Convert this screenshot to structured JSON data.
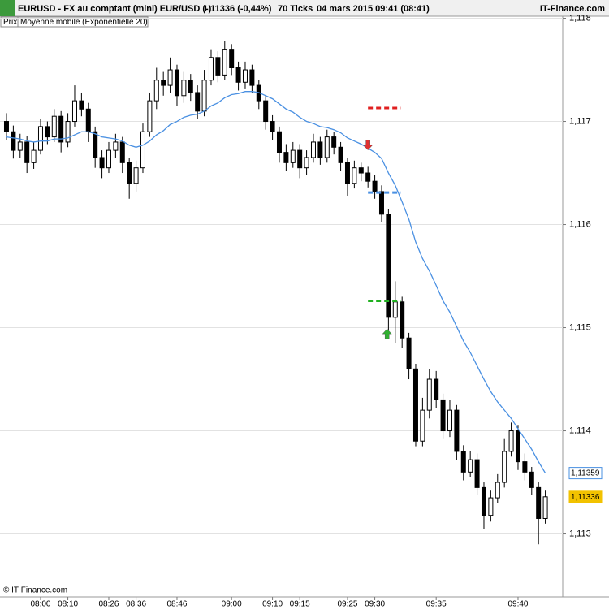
{
  "chart_data": {
    "type": "candlestick",
    "title": "EURUSD - FX au comptant (mini) EUR/USD (-)",
    "last_quote": "1,11336 (-0,44%)",
    "interval": "70 Ticks",
    "date": "04 mars 2015 09:41 (08:41)",
    "source": "IT-Finance.com",
    "footer": "© IT-Finance.com",
    "price_label": "Prix",
    "x": [
      0,
      1,
      2,
      3,
      4,
      5,
      6,
      7,
      8,
      9,
      10,
      11,
      12,
      13,
      14,
      15,
      16,
      17,
      18,
      19,
      20,
      21,
      22,
      23,
      24,
      25,
      26,
      27,
      28,
      29,
      30,
      31,
      32,
      33,
      34,
      35,
      36,
      37,
      38,
      39,
      40,
      41,
      42,
      43,
      44,
      45,
      46,
      47,
      48,
      49,
      50,
      51,
      52,
      53,
      54,
      55,
      56,
      57,
      58,
      59,
      60,
      61,
      62,
      63,
      64,
      65,
      66,
      67,
      68,
      69,
      70,
      71,
      72,
      73,
      74,
      75,
      76,
      77,
      78,
      79
    ],
    "open": [
      1.117,
      1.1169,
      1.11672,
      1.1168,
      1.1166,
      1.11672,
      1.11695,
      1.11685,
      1.11705,
      1.1168,
      1.117,
      1.1172,
      1.11712,
      1.1169,
      1.11665,
      1.11655,
      1.11672,
      1.1168,
      1.1166,
      1.1164,
      1.11655,
      1.1169,
      1.1172,
      1.1174,
      1.11735,
      1.1175,
      1.11725,
      1.1174,
      1.11728,
      1.1171,
      1.1174,
      1.11762,
      1.11745,
      1.1177,
      1.11752,
      1.11738,
      1.1175,
      1.11735,
      1.1172,
      1.117,
      1.1169,
      1.1167,
      1.1166,
      1.11672,
      1.11655,
      1.11665,
      1.1168,
      1.11665,
      1.11685,
      1.11675,
      1.1166,
      1.1164,
      1.11655,
      1.1165,
      1.11642,
      1.11632,
      1.1161,
      1.1151,
      1.11525,
      1.1149,
      1.1146,
      1.1139,
      1.1142,
      1.1145,
      1.1143,
      1.114,
      1.1142,
      1.1138,
      1.1136,
      1.11372,
      1.11345,
      1.11318,
      1.11335,
      1.1135,
      1.1138,
      1.114,
      1.1137,
      1.1136,
      1.11345,
      1.11315
    ],
    "high": [
      1.11708,
      1.11696,
      1.11688,
      1.11686,
      1.1168,
      1.11702,
      1.117,
      1.11712,
      1.1171,
      1.11708,
      1.11735,
      1.11728,
      1.11718,
      1.11695,
      1.11672,
      1.1168,
      1.11688,
      1.11685,
      1.11665,
      1.11662,
      1.11698,
      1.11728,
      1.11752,
      1.11748,
      1.11762,
      1.11755,
      1.11748,
      1.11746,
      1.11735,
      1.1175,
      1.1177,
      1.11768,
      1.11778,
      1.11775,
      1.11758,
      1.11758,
      1.11755,
      1.1174,
      1.11725,
      1.11706,
      1.11695,
      1.11678,
      1.1168,
      1.11678,
      1.11672,
      1.11688,
      1.11685,
      1.11692,
      1.1169,
      1.1168,
      1.11665,
      1.11662,
      1.1166,
      1.11656,
      1.11648,
      1.11638,
      1.11615,
      1.11545,
      1.1153,
      1.11495,
      1.11465,
      1.11432,
      1.1146,
      1.11458,
      1.11436,
      1.1143,
      1.11425,
      1.11386,
      1.1138,
      1.11378,
      1.1135,
      1.11342,
      1.11358,
      1.11392,
      1.11408,
      1.11405,
      1.11378,
      1.11365,
      1.1135,
      1.11342
    ],
    "low": [
      1.11682,
      1.11664,
      1.11665,
      1.1165,
      1.11654,
      1.11668,
      1.11678,
      1.1168,
      1.1167,
      1.11675,
      1.11695,
      1.11705,
      1.1168,
      1.11655,
      1.11645,
      1.1165,
      1.11665,
      1.1165,
      1.11625,
      1.11632,
      1.1165,
      1.11685,
      1.11712,
      1.11725,
      1.11728,
      1.11715,
      1.11718,
      1.1172,
      1.11702,
      1.11705,
      1.11735,
      1.11738,
      1.1174,
      1.11745,
      1.1173,
      1.11732,
      1.11728,
      1.11712,
      1.11692,
      1.11682,
      1.1166,
      1.11652,
      1.11655,
      1.11645,
      1.11648,
      1.1166,
      1.11658,
      1.1166,
      1.11668,
      1.11652,
      1.11628,
      1.11635,
      1.11642,
      1.11636,
      1.11625,
      1.11602,
      1.11495,
      1.11485,
      1.1148,
      1.1145,
      1.11385,
      1.11385,
      1.11412,
      1.11422,
      1.11392,
      1.11394,
      1.11372,
      1.11352,
      1.11355,
      1.11338,
      1.11305,
      1.11312,
      1.1133,
      1.11345,
      1.11375,
      1.11362,
      1.11352,
      1.11338,
      1.1129,
      1.1131
    ],
    "close": [
      1.1169,
      1.11672,
      1.1168,
      1.1166,
      1.11672,
      1.11695,
      1.11685,
      1.11705,
      1.1168,
      1.117,
      1.1172,
      1.11712,
      1.1169,
      1.11665,
      1.11655,
      1.11672,
      1.1168,
      1.1166,
      1.1164,
      1.11655,
      1.1169,
      1.1172,
      1.1174,
      1.11735,
      1.1175,
      1.11725,
      1.1174,
      1.11728,
      1.1171,
      1.1174,
      1.11762,
      1.11745,
      1.1177,
      1.11752,
      1.11738,
      1.1175,
      1.11735,
      1.1172,
      1.117,
      1.1169,
      1.1167,
      1.1166,
      1.11672,
      1.11655,
      1.11665,
      1.1168,
      1.11665,
      1.11685,
      1.11675,
      1.1166,
      1.1164,
      1.11655,
      1.1165,
      1.11642,
      1.11632,
      1.1161,
      1.1151,
      1.11525,
      1.1149,
      1.1146,
      1.1139,
      1.1142,
      1.1145,
      1.1143,
      1.114,
      1.1142,
      1.1138,
      1.1136,
      1.11372,
      1.11345,
      1.11318,
      1.11335,
      1.1135,
      1.1138,
      1.114,
      1.1137,
      1.1136,
      1.11345,
      1.11315,
      1.11336
    ],
    "up_color": "#ffffff",
    "down_color": "#000000",
    "ema": {
      "name": "Moyenne mobile (Exponentielle 20)",
      "color": "#4a90e2",
      "values": [
        1.11685,
        1.11684,
        1.11683,
        1.11681,
        1.1168,
        1.11681,
        1.11681,
        1.11683,
        1.11683,
        1.11684,
        1.11687,
        1.1169,
        1.1169,
        1.11688,
        1.11685,
        1.11684,
        1.11683,
        1.11681,
        1.11677,
        1.11675,
        1.11677,
        1.11681,
        1.11687,
        1.11691,
        1.11697,
        1.117,
        1.11704,
        1.11706,
        1.11707,
        1.1171,
        1.11715,
        1.11718,
        1.11723,
        1.11726,
        1.11727,
        1.11729,
        1.11729,
        1.11728,
        1.11725,
        1.11722,
        1.11717,
        1.11712,
        1.11709,
        1.11704,
        1.117,
        1.11698,
        1.11695,
        1.11694,
        1.11692,
        1.11689,
        1.11684,
        1.11681,
        1.11678,
        1.11674,
        1.1167,
        1.11664,
        1.1165,
        1.11638,
        1.11622,
        1.11605,
        1.11583,
        1.11567,
        1.11555,
        1.11541,
        1.11526,
        1.11515,
        1.11501,
        1.11487,
        1.11476,
        1.11463,
        1.1145,
        1.11438,
        1.11428,
        1.1142,
        1.11412,
        1.11402,
        1.11392,
        1.11382,
        1.1137,
        1.11359
      ]
    },
    "price_tags": [
      {
        "value": 1.11359,
        "label": "1,11359",
        "color": "#4a90e2"
      },
      {
        "value": 1.11336,
        "label": "1,11336",
        "color": "#f2c200"
      }
    ],
    "levels": [
      {
        "x": [
          53,
          57.8
        ],
        "value": 1.11713,
        "color": "#e02020"
      },
      {
        "x": [
          53,
          57.8
        ],
        "value": 1.11631,
        "color": "#4a90e2"
      },
      {
        "x": [
          53,
          57.8
        ],
        "value": 1.11526,
        "color": "#20b020"
      }
    ],
    "arrows": [
      {
        "x": 53,
        "value": 1.11677,
        "direction": "down",
        "color": "#e03030"
      },
      {
        "x": 55.8,
        "value": 1.11494,
        "direction": "up",
        "color": "#30b030"
      }
    ],
    "xlim": [
      -0.95,
      81.55
    ],
    "ylim": [
      1.11239,
      1.11802
    ],
    "yticks": [
      {
        "value": 1.113,
        "label": "1,113"
      },
      {
        "value": 1.114,
        "label": "1,114"
      },
      {
        "value": 1.115,
        "label": "1,115"
      },
      {
        "value": 1.116,
        "label": "1,116"
      },
      {
        "value": 1.117,
        "label": "1,117"
      },
      {
        "value": 1.118,
        "label": "1,118"
      }
    ],
    "xticks": [
      {
        "value": 5,
        "label": "08:00"
      },
      {
        "value": 9,
        "label": "08:10"
      },
      {
        "value": 15,
        "label": "08:26"
      },
      {
        "value": 19,
        "label": "08:36"
      },
      {
        "value": 25,
        "label": "08:46"
      },
      {
        "value": 33,
        "label": "09:00"
      },
      {
        "value": 39,
        "label": "09:10"
      },
      {
        "value": 43,
        "label": "09:15"
      },
      {
        "value": 50,
        "label": "09:25"
      },
      {
        "value": 54,
        "label": "09:30"
      },
      {
        "value": 63,
        "label": "09:35"
      },
      {
        "value": 75,
        "label": "09:40"
      }
    ],
    "grid": true
  }
}
